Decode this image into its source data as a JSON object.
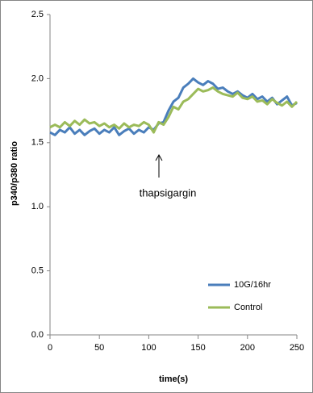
{
  "chart_data": {
    "type": "line",
    "xlabel": "time(s)",
    "ylabel": "p340/p380 ratio",
    "annotation": "thapsigargin",
    "x": [
      0,
      5,
      10,
      15,
      20,
      25,
      30,
      35,
      40,
      45,
      50,
      55,
      60,
      65,
      70,
      75,
      80,
      85,
      90,
      95,
      100,
      105,
      110,
      115,
      120,
      125,
      130,
      135,
      140,
      145,
      150,
      155,
      160,
      165,
      170,
      175,
      180,
      185,
      190,
      195,
      200,
      205,
      210,
      215,
      220,
      225,
      230,
      235,
      240,
      245,
      250
    ],
    "series": [
      {
        "name": "10G/16hr",
        "color": "#4a7ebb",
        "values": [
          1.58,
          1.56,
          1.6,
          1.58,
          1.62,
          1.57,
          1.6,
          1.56,
          1.59,
          1.61,
          1.57,
          1.6,
          1.58,
          1.62,
          1.56,
          1.59,
          1.61,
          1.57,
          1.6,
          1.58,
          1.62,
          1.6,
          1.65,
          1.66,
          1.75,
          1.82,
          1.85,
          1.93,
          1.96,
          2.0,
          1.97,
          1.95,
          1.98,
          1.96,
          1.92,
          1.93,
          1.9,
          1.88,
          1.9,
          1.87,
          1.85,
          1.88,
          1.84,
          1.86,
          1.82,
          1.85,
          1.8,
          1.83,
          1.86,
          1.79,
          1.81
        ]
      },
      {
        "name": "Control",
        "color": "#9bbb59",
        "values": [
          1.62,
          1.64,
          1.62,
          1.66,
          1.63,
          1.67,
          1.64,
          1.68,
          1.65,
          1.66,
          1.63,
          1.65,
          1.62,
          1.64,
          1.61,
          1.65,
          1.62,
          1.64,
          1.63,
          1.66,
          1.64,
          1.58,
          1.66,
          1.64,
          1.7,
          1.78,
          1.76,
          1.82,
          1.84,
          1.88,
          1.92,
          1.9,
          1.91,
          1.93,
          1.9,
          1.88,
          1.87,
          1.86,
          1.89,
          1.85,
          1.84,
          1.86,
          1.82,
          1.83,
          1.8,
          1.84,
          1.81,
          1.79,
          1.82,
          1.78,
          1.82
        ]
      }
    ],
    "xlim": [
      0,
      250
    ],
    "xticks": [
      0,
      50,
      100,
      150,
      200,
      250
    ],
    "ylim": [
      0,
      2.5
    ],
    "yticks": [
      {
        "value": 0,
        "label": "0.0"
      },
      {
        "value": 0.5,
        "label": "0.5"
      },
      {
        "value": 1,
        "label": "1.0"
      },
      {
        "value": 1.5,
        "label": "1.5"
      },
      {
        "value": 2,
        "label": "2.0"
      },
      {
        "value": 2.5,
        "label": "2.5"
      }
    ],
    "grid": false,
    "legend": "lower right"
  }
}
